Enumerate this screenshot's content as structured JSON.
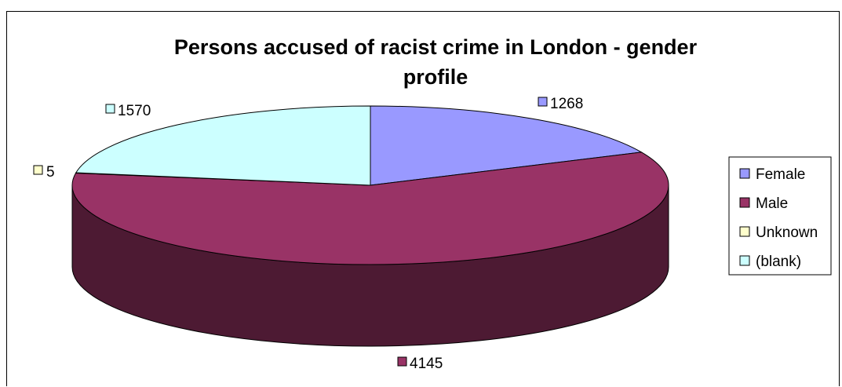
{
  "chart_data": {
    "type": "pie",
    "title": "Persons accused of racist crime in London - gender profile",
    "title_lines": [
      "Persons accused of racist crime in London - gender",
      "profile"
    ],
    "categories": [
      "Female",
      "Male",
      "Unknown",
      "(blank)"
    ],
    "values": [
      1268,
      4145,
      5,
      1570
    ],
    "data_labels": [
      "1268",
      "4145",
      "5",
      "1570"
    ],
    "colors": {
      "Female": "#9999ff",
      "Male": "#993366",
      "Unknown": "#ffffcc",
      "(blank)": "#ccffff"
    },
    "side_colors": {
      "Female": "#5c5c99",
      "Male": "#4d1a33",
      "Unknown": "#99997a",
      "(blank)": "#7a9999"
    },
    "style": "3d",
    "legend_position": "right"
  }
}
